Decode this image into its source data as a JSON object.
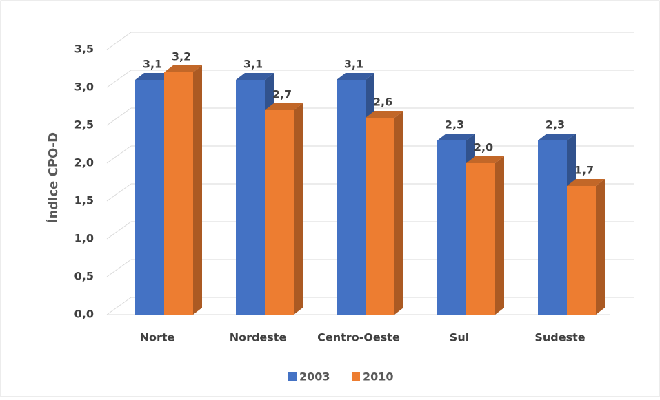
{
  "chart_data": {
    "type": "bar3d",
    "y_label": "Índice CPO-D",
    "categories": [
      "Norte",
      "Nordeste",
      "Centro-Oeste",
      "Sul",
      "Sudeste"
    ],
    "series": [
      {
        "name": "2003",
        "color": "#4472c4",
        "values": [
          3.1,
          3.1,
          3.1,
          2.3,
          2.3
        ],
        "value_labels": [
          "3,1",
          "3,1",
          "3,1",
          "2,3",
          "2,3"
        ]
      },
      {
        "name": "2010",
        "color": "#ed7d31",
        "values": [
          3.2,
          2.7,
          2.6,
          2.0,
          1.7
        ],
        "value_labels": [
          "3,2",
          "2,7",
          "2,6",
          "2,0",
          "1,7"
        ]
      }
    ],
    "ylim": [
      0,
      3.5
    ],
    "yticks": [
      {
        "value": 0,
        "label": "0,0"
      },
      {
        "value": 0.5,
        "label": "0,5"
      },
      {
        "value": 1,
        "label": "1,0"
      },
      {
        "value": 1.5,
        "label": "1,5"
      },
      {
        "value": 2,
        "label": "2,0"
      },
      {
        "value": 2.5,
        "label": "2,5"
      },
      {
        "value": 3,
        "label": "3,0"
      },
      {
        "value": 3.5,
        "label": "3,5"
      }
    ],
    "grid": true,
    "legend": "bottom"
  }
}
